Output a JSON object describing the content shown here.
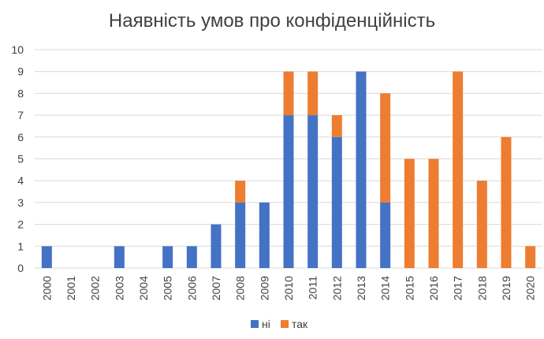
{
  "chart_data": {
    "type": "bar",
    "stacked": true,
    "title": "Наявність умов про конфіденційність",
    "xlabel": "",
    "ylabel": "",
    "ylim": [
      0,
      10
    ],
    "yticks": [
      0,
      1,
      2,
      3,
      4,
      5,
      6,
      7,
      8,
      9,
      10
    ],
    "grid": true,
    "legend_position": "bottom",
    "categories": [
      "2000",
      "2001",
      "2002",
      "2003",
      "2004",
      "2005",
      "2006",
      "2007",
      "2008",
      "2009",
      "2010",
      "2011",
      "2012",
      "2013",
      "2014",
      "2015",
      "2016",
      "2017",
      "2018",
      "2019",
      "2020"
    ],
    "series": [
      {
        "name": "ні",
        "color": "#4472c4",
        "values": [
          1,
          0,
          0,
          1,
          0,
          1,
          1,
          2,
          3,
          3,
          7,
          7,
          6,
          9,
          3,
          0,
          0,
          0,
          0,
          0,
          0
        ]
      },
      {
        "name": "так",
        "color": "#ed7d31",
        "values": [
          0,
          0,
          0,
          0,
          0,
          0,
          0,
          0,
          1,
          0,
          2,
          2,
          1,
          0,
          5,
          5,
          5,
          9,
          4,
          6,
          1
        ]
      }
    ]
  }
}
